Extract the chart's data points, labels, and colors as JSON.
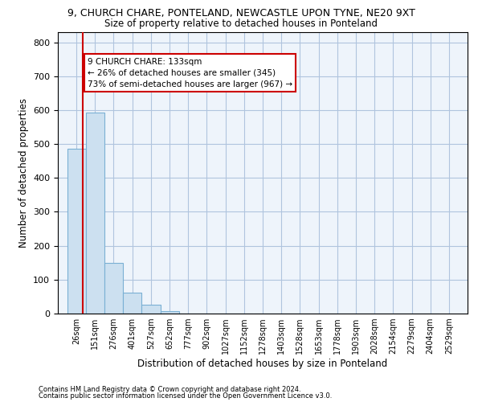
{
  "title_line1": "9, CHURCH CHARE, PONTELAND, NEWCASTLE UPON TYNE, NE20 9XT",
  "title_line2": "Size of property relative to detached houses in Ponteland",
  "xlabel": "Distribution of detached houses by size in Ponteland",
  "ylabel": "Number of detached properties",
  "bar_edges": [
    26,
    151,
    276,
    401,
    527,
    652,
    777,
    902,
    1027,
    1152,
    1278,
    1403,
    1528,
    1653,
    1778,
    1903,
    2028,
    2154,
    2279,
    2404,
    2529
  ],
  "bar_heights": [
    485,
    592,
    150,
    61,
    25,
    8,
    0,
    0,
    0,
    0,
    0,
    0,
    0,
    0,
    0,
    0,
    0,
    0,
    0,
    0
  ],
  "bar_color": "#cce0f0",
  "bar_edgecolor": "#7ab0d4",
  "grid_color": "#b0c4de",
  "background_color": "#eef4fb",
  "vline_x": 133,
  "vline_color": "#cc0000",
  "annotation_text": "9 CHURCH CHARE: 133sqm\n← 26% of detached houses are smaller (345)\n73% of semi-detached houses are larger (967) →",
  "annotation_box_color": "#ffffff",
  "annotation_box_edgecolor": "#cc0000",
  "ylim": [
    0,
    830
  ],
  "yticks": [
    0,
    100,
    200,
    300,
    400,
    500,
    600,
    700,
    800
  ],
  "footnote1": "Contains HM Land Registry data © Crown copyright and database right 2024.",
  "footnote2": "Contains public sector information licensed under the Open Government Licence v3.0."
}
